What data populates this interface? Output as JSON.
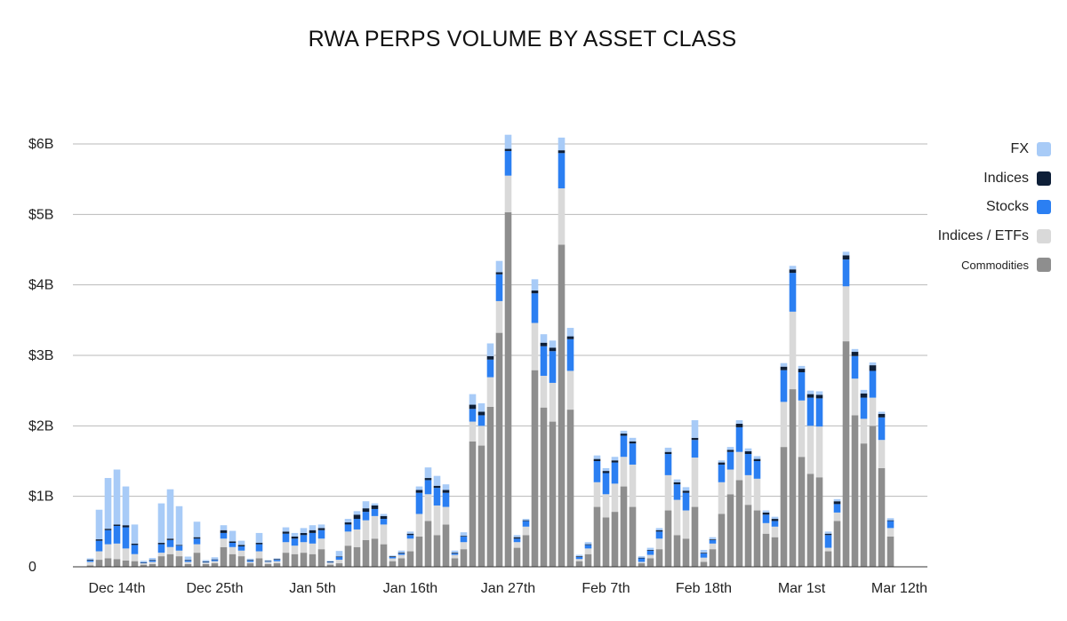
{
  "chart_data": {
    "type": "bar",
    "stacked": true,
    "title": "RWA PERPS VOLUME BY ASSET CLASS",
    "ylim": [
      0,
      6
    ],
    "yticks": [
      {
        "value": 0,
        "label": "0"
      },
      {
        "value": 1,
        "label": "$1B"
      },
      {
        "value": 2,
        "label": "$2B"
      },
      {
        "value": 3,
        "label": "$3B"
      },
      {
        "value": 4,
        "label": "$4B"
      },
      {
        "value": 5,
        "label": "$5B"
      },
      {
        "value": 6,
        "label": "$6B"
      }
    ],
    "xtick_labels": [
      {
        "index": 3,
        "label": "Dec 14th"
      },
      {
        "index": 14,
        "label": "Dec 25th"
      },
      {
        "index": 25,
        "label": "Jan 5th"
      },
      {
        "index": 36,
        "label": "Jan 16th"
      },
      {
        "index": 47,
        "label": "Jan 27th"
      },
      {
        "index": 58,
        "label": "Feb 7th"
      },
      {
        "index": 69,
        "label": "Feb 18th"
      },
      {
        "index": 80,
        "label": "Mar 1st"
      },
      {
        "index": 91,
        "label": "Mar 12th"
      }
    ],
    "grid": true,
    "legend_position": "right",
    "series": [
      {
        "name": "Commodities",
        "color": "#8e8e8e",
        "values": [
          0.02,
          0.1,
          0.12,
          0.11,
          0.09,
          0.08,
          0.03,
          0.04,
          0.15,
          0.18,
          0.15,
          0.04,
          0.2,
          0.04,
          0.05,
          0.28,
          0.18,
          0.15,
          0.05,
          0.12,
          0.04,
          0.05,
          0.2,
          0.18,
          0.2,
          0.18,
          0.25,
          0.03,
          0.05,
          0.3,
          0.28,
          0.38,
          0.4,
          0.32,
          0.08,
          0.12,
          0.22,
          0.43,
          0.65,
          0.45,
          0.6,
          0.12,
          0.25,
          1.78,
          1.72,
          2.27,
          3.32,
          5.03,
          0.27,
          0.45,
          2.79,
          2.26,
          2.06,
          4.57,
          2.23,
          0.08,
          0.18,
          0.85,
          0.7,
          0.78,
          1.14,
          0.85,
          0.05,
          0.12,
          0.25,
          0.8,
          0.45,
          0.4,
          0.85,
          0.07,
          0.25,
          0.75,
          1.03,
          1.23,
          0.88,
          0.8,
          0.47,
          0.42,
          1.7,
          2.52,
          1.56,
          1.32,
          1.27,
          0.22,
          0.65,
          3.2,
          2.15,
          1.75,
          2.0,
          1.4,
          0.43
        ]
      },
      {
        "name": "Indices / ETFs",
        "color": "#d9d9d9",
        "values": [
          0.05,
          0.12,
          0.2,
          0.22,
          0.17,
          0.1,
          0.02,
          0.03,
          0.05,
          0.1,
          0.08,
          0.03,
          0.12,
          0.02,
          0.03,
          0.12,
          0.1,
          0.08,
          0.02,
          0.1,
          0.03,
          0.03,
          0.15,
          0.12,
          0.15,
          0.15,
          0.15,
          0.03,
          0.05,
          0.2,
          0.25,
          0.28,
          0.32,
          0.28,
          0.04,
          0.05,
          0.18,
          0.32,
          0.38,
          0.42,
          0.25,
          0.05,
          0.1,
          0.28,
          0.28,
          0.42,
          0.45,
          0.52,
          0.08,
          0.12,
          0.67,
          0.45,
          0.55,
          0.8,
          0.55,
          0.03,
          0.08,
          0.35,
          0.33,
          0.4,
          0.42,
          0.6,
          0.02,
          0.05,
          0.15,
          0.5,
          0.5,
          0.4,
          0.7,
          0.06,
          0.08,
          0.45,
          0.35,
          0.4,
          0.42,
          0.45,
          0.15,
          0.15,
          0.64,
          1.1,
          0.8,
          0.68,
          0.72,
          0.05,
          0.12,
          0.78,
          0.52,
          0.35,
          0.4,
          0.4,
          0.12
        ]
      },
      {
        "name": "Stocks",
        "color": "#2b7ff2",
        "values": [
          0.02,
          0.15,
          0.2,
          0.25,
          0.3,
          0.13,
          0.01,
          0.02,
          0.12,
          0.1,
          0.07,
          0.02,
          0.08,
          0.01,
          0.02,
          0.08,
          0.06,
          0.06,
          0.02,
          0.1,
          0.01,
          0.02,
          0.12,
          0.1,
          0.1,
          0.15,
          0.12,
          0.01,
          0.04,
          0.1,
          0.15,
          0.12,
          0.1,
          0.08,
          0.02,
          0.02,
          0.05,
          0.3,
          0.2,
          0.25,
          0.2,
          0.02,
          0.08,
          0.18,
          0.15,
          0.25,
          0.38,
          0.35,
          0.05,
          0.08,
          0.42,
          0.42,
          0.45,
          0.5,
          0.45,
          0.03,
          0.05,
          0.3,
          0.3,
          0.3,
          0.3,
          0.3,
          0.05,
          0.06,
          0.1,
          0.3,
          0.22,
          0.25,
          0.25,
          0.06,
          0.05,
          0.25,
          0.25,
          0.35,
          0.3,
          0.25,
          0.12,
          0.08,
          0.45,
          0.55,
          0.4,
          0.4,
          0.4,
          0.18,
          0.12,
          0.38,
          0.32,
          0.3,
          0.38,
          0.32,
          0.1
        ]
      },
      {
        "name": "Indices",
        "color": "#0e1f38",
        "values": [
          0.01,
          0.02,
          0.02,
          0.02,
          0.03,
          0.02,
          0.005,
          0.005,
          0.02,
          0.02,
          0.01,
          0.005,
          0.02,
          0.005,
          0.005,
          0.04,
          0.02,
          0.02,
          0.005,
          0.02,
          0.005,
          0.01,
          0.03,
          0.03,
          0.03,
          0.04,
          0.03,
          0.005,
          0.005,
          0.03,
          0.06,
          0.05,
          0.05,
          0.04,
          0.01,
          0.01,
          0.02,
          0.04,
          0.03,
          0.03,
          0.04,
          0.01,
          0.01,
          0.06,
          0.05,
          0.05,
          0.03,
          0.03,
          0.02,
          0.01,
          0.04,
          0.05,
          0.05,
          0.04,
          0.04,
          0.01,
          0.01,
          0.03,
          0.03,
          0.03,
          0.03,
          0.03,
          0.01,
          0.01,
          0.02,
          0.03,
          0.03,
          0.03,
          0.03,
          0.01,
          0.01,
          0.03,
          0.03,
          0.05,
          0.04,
          0.03,
          0.03,
          0.03,
          0.05,
          0.05,
          0.05,
          0.05,
          0.05,
          0.02,
          0.04,
          0.06,
          0.06,
          0.06,
          0.08,
          0.05,
          0.01
        ]
      },
      {
        "name": "FX",
        "color": "#a8cbf7",
        "values": [
          0.02,
          0.42,
          0.72,
          0.78,
          0.55,
          0.27,
          0.02,
          0.03,
          0.56,
          0.7,
          0.55,
          0.05,
          0.22,
          0.02,
          0.03,
          0.07,
          0.15,
          0.06,
          0.02,
          0.14,
          0.01,
          0.01,
          0.06,
          0.05,
          0.07,
          0.07,
          0.05,
          0.01,
          0.08,
          0.05,
          0.05,
          0.1,
          0.03,
          0.03,
          0.01,
          0.03,
          0.03,
          0.05,
          0.15,
          0.14,
          0.08,
          0.03,
          0.05,
          0.15,
          0.12,
          0.18,
          0.16,
          0.2,
          0.03,
          0.02,
          0.16,
          0.12,
          0.1,
          0.18,
          0.12,
          0.02,
          0.03,
          0.05,
          0.04,
          0.05,
          0.04,
          0.05,
          0.02,
          0.03,
          0.03,
          0.06,
          0.04,
          0.05,
          0.25,
          0.04,
          0.03,
          0.03,
          0.04,
          0.05,
          0.04,
          0.04,
          0.03,
          0.03,
          0.05,
          0.05,
          0.04,
          0.05,
          0.05,
          0.03,
          0.03,
          0.05,
          0.04,
          0.05,
          0.04,
          0.03,
          0.03
        ]
      }
    ]
  },
  "legend": {
    "items": [
      {
        "label": "FX",
        "color": "#a8cbf7"
      },
      {
        "label": "Indices",
        "color": "#0e1f38"
      },
      {
        "label": "Stocks",
        "color": "#2b7ff2"
      },
      {
        "label": "Indices / ETFs",
        "color": "#d9d9d9"
      },
      {
        "label": "Commodities",
        "color": "#8e8e8e"
      }
    ]
  }
}
